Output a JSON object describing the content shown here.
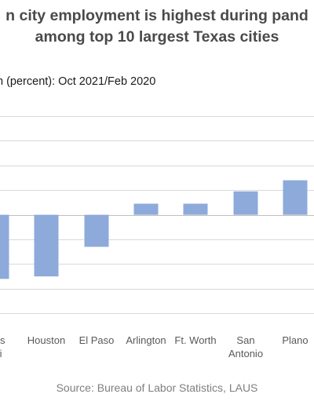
{
  "chart_data": {
    "type": "bar",
    "title_line1": "n city employment is highest during pand",
    "title_line2": "among top 10 largest Texas cities",
    "subtitle": "n (percent): Oct 2021/Feb 2020",
    "source": "Source: Bureau of Labor Statistics, LAUS",
    "categories": [
      [
        "ous",
        "sti"
      ],
      [
        "Houston"
      ],
      [
        "El Paso"
      ],
      [
        "Arlington"
      ],
      [
        "Ft. Worth"
      ],
      [
        "San",
        "Antonio"
      ],
      [
        "Plano"
      ]
    ],
    "values": [
      -2.6,
      -2.5,
      -1.3,
      0.45,
      0.45,
      0.95,
      1.4
    ],
    "ylim": [
      -4.5,
      4.0
    ],
    "gridline_step": 1.0,
    "grid": true,
    "colors": {
      "bar": "#8eaadb",
      "grid": "#d9d9d9",
      "title": "#4a4a4a",
      "source": "#7f7f7f"
    }
  }
}
